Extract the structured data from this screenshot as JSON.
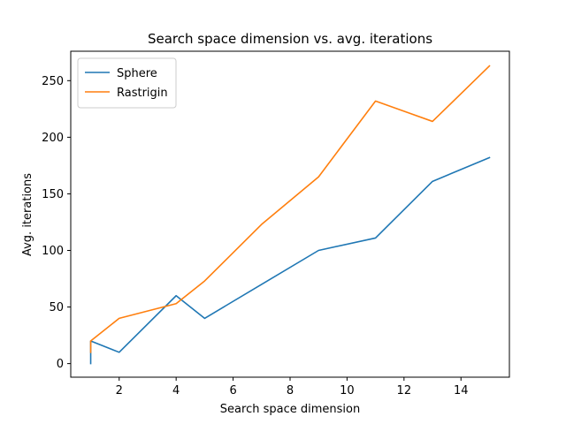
{
  "chart_data": {
    "type": "line",
    "title": "Search space dimension vs. avg. iterations",
    "xlabel": "Search space dimension",
    "ylabel": "Avg. iterations",
    "xlim": [
      0.3,
      15.7
    ],
    "ylim": [
      -12,
      276
    ],
    "xticks": [
      2,
      4,
      6,
      8,
      10,
      12,
      14
    ],
    "yticks": [
      0,
      50,
      100,
      150,
      200,
      250
    ],
    "grid": false,
    "legend_position": "top-left",
    "series": [
      {
        "name": "Sphere",
        "color": "#1f77b4",
        "x": [
          1,
          1,
          2,
          4,
          5,
          7,
          9,
          11,
          13,
          15
        ],
        "y": [
          0,
          20,
          10,
          60,
          40,
          70,
          100,
          111,
          161,
          182
        ]
      },
      {
        "name": "Rastrigin",
        "color": "#ff7f0e",
        "x": [
          1,
          1,
          2,
          4,
          5,
          7,
          9,
          11,
          13,
          15
        ],
        "y": [
          10,
          20,
          40,
          53,
          73,
          123,
          165,
          232,
          214,
          263
        ]
      }
    ]
  }
}
